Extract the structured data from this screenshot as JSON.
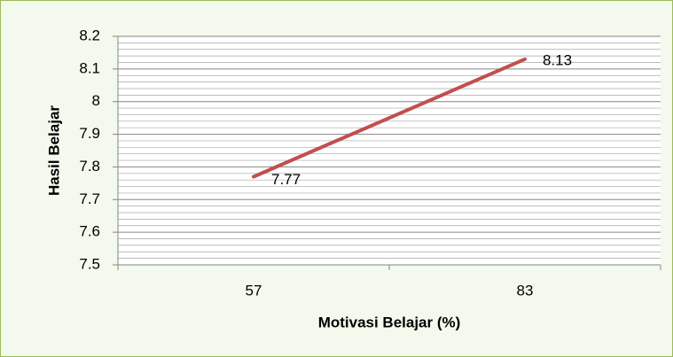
{
  "chart_data": {
    "type": "line",
    "categories": [
      "57",
      "83"
    ],
    "series": [
      {
        "name": "Hasil Belajar",
        "color": "#c0504d",
        "values": [
          7.77,
          8.13
        ]
      }
    ],
    "ylim": [
      7.5,
      8.2
    ],
    "yticks": [
      7.5,
      7.6,
      7.7,
      7.8,
      7.9,
      8,
      8.1,
      8.2
    ],
    "yminorticks": [
      7.52,
      7.54,
      7.56,
      7.58,
      7.62,
      7.64,
      7.66,
      7.68,
      7.72,
      7.74,
      7.76,
      7.78,
      7.82,
      7.84,
      7.86,
      7.88,
      7.92,
      7.94,
      7.96,
      7.98,
      8.02,
      8.04,
      8.06,
      8.08,
      8.12,
      8.14,
      8.16,
      8.18
    ],
    "grid": true,
    "xlabel": "Motivasi Belajar (%)",
    "ylabel": "Hasil Belajar"
  }
}
